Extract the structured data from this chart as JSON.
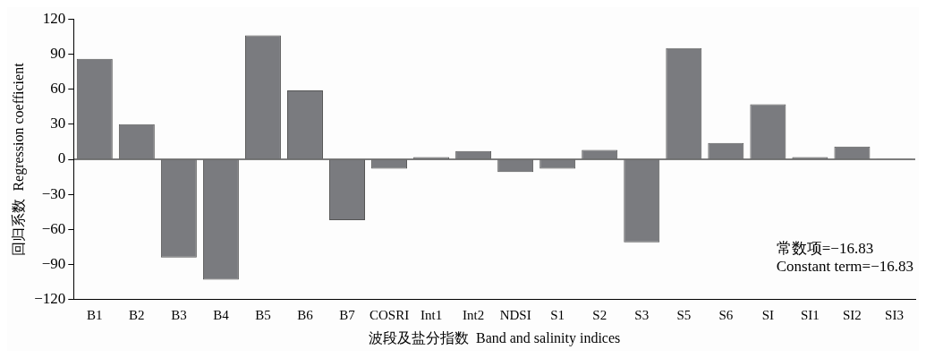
{
  "chart_data": {
    "type": "bar",
    "xlabel": "波段及盐分指数  Band and salinity indices",
    "ylabel": "回归系数  Regression coefficient",
    "categories": [
      "B1",
      "B2",
      "B3",
      "B4",
      "B5",
      "B6",
      "B7",
      "COSRI",
      "Int1",
      "Int2",
      "NDSI",
      "S1",
      "S2",
      "S3",
      "S5",
      "S6",
      "SI",
      "SI1",
      "SI2",
      "SI3"
    ],
    "values": [
      86,
      30,
      -84,
      -103,
      106,
      59,
      -52,
      -8,
      2,
      7,
      -11,
      -8,
      8,
      -71,
      95,
      14,
      47,
      2,
      11,
      0.5
    ],
    "color": "#7a7b7f",
    "ylim": [
      -120,
      120
    ],
    "yticks": [
      -120,
      -90,
      -60,
      -30,
      0,
      30,
      60,
      90,
      120
    ],
    "grid": false,
    "ref_lines": [
      {
        "axis": "y",
        "value": 0,
        "color": "#000000"
      }
    ],
    "annotations": [
      "常数项=−16.83",
      "Constant term=−16.83"
    ]
  }
}
